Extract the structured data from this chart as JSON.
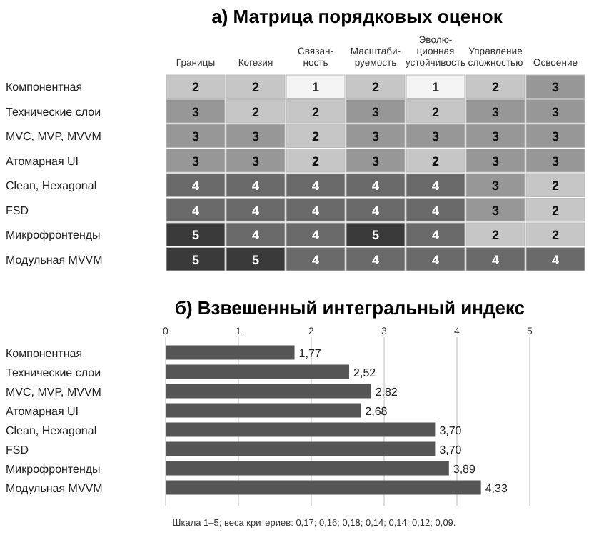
{
  "chart_data": [
    {
      "type": "heatmap",
      "data_labels": true,
      "title": "а) Матрица порядковых оценок",
      "categories": [
        "Границы",
        "Когезия",
        "Связан-\nность",
        "Масштаби-\nруемость",
        "Эволю-\nционная\nустойчивость",
        "Управление\nсложностью",
        "Освоение"
      ],
      "y_categories": [
        "Компонентная",
        "Технические слои",
        "MVC, MVP, MVVM",
        "Атомарная UI",
        "Clean, Hexagonal",
        "FSD",
        "Микрофронтенды",
        "Модульная MVVM"
      ],
      "cells": [
        [
          2,
          2,
          1,
          2,
          1,
          2,
          3
        ],
        [
          3,
          2,
          2,
          3,
          2,
          3,
          3
        ],
        [
          3,
          3,
          2,
          3,
          3,
          3,
          3
        ],
        [
          3,
          3,
          2,
          3,
          2,
          3,
          3
        ],
        [
          4,
          4,
          4,
          4,
          4,
          3,
          2
        ],
        [
          4,
          4,
          4,
          4,
          4,
          3,
          2
        ],
        [
          5,
          4,
          4,
          5,
          4,
          2,
          2
        ],
        [
          5,
          5,
          4,
          4,
          4,
          4,
          4
        ]
      ]
    },
    {
      "type": "bar",
      "orientation": "horizontal",
      "title": "б) Взвешенный интегральный индекс",
      "categories": [
        "Компонентная",
        "Технические слои",
        "MVC, MVP, MVVM",
        "Атомарная UI",
        "Clean, Hexagonal",
        "FSD",
        "Микрофронтенды",
        "Модульная MVVM"
      ],
      "values": [
        1.77,
        2.52,
        2.82,
        2.68,
        3.7,
        3.7,
        3.89,
        4.33
      ],
      "value_labels": [
        "1,77",
        "2,52",
        "2,82",
        "2,68",
        "3,70",
        "3,70",
        "3,89",
        "4,33"
      ],
      "color": "#555555",
      "xlim": [
        0,
        5
      ],
      "xticks": [
        0,
        1,
        2,
        3,
        4,
        5
      ],
      "grid": "x",
      "annotations": [
        "Шкала 1–5; веса критериев: 0,17; 0,16; 0,18; 0,14; 0,14; 0,12; 0,09."
      ]
    }
  ]
}
